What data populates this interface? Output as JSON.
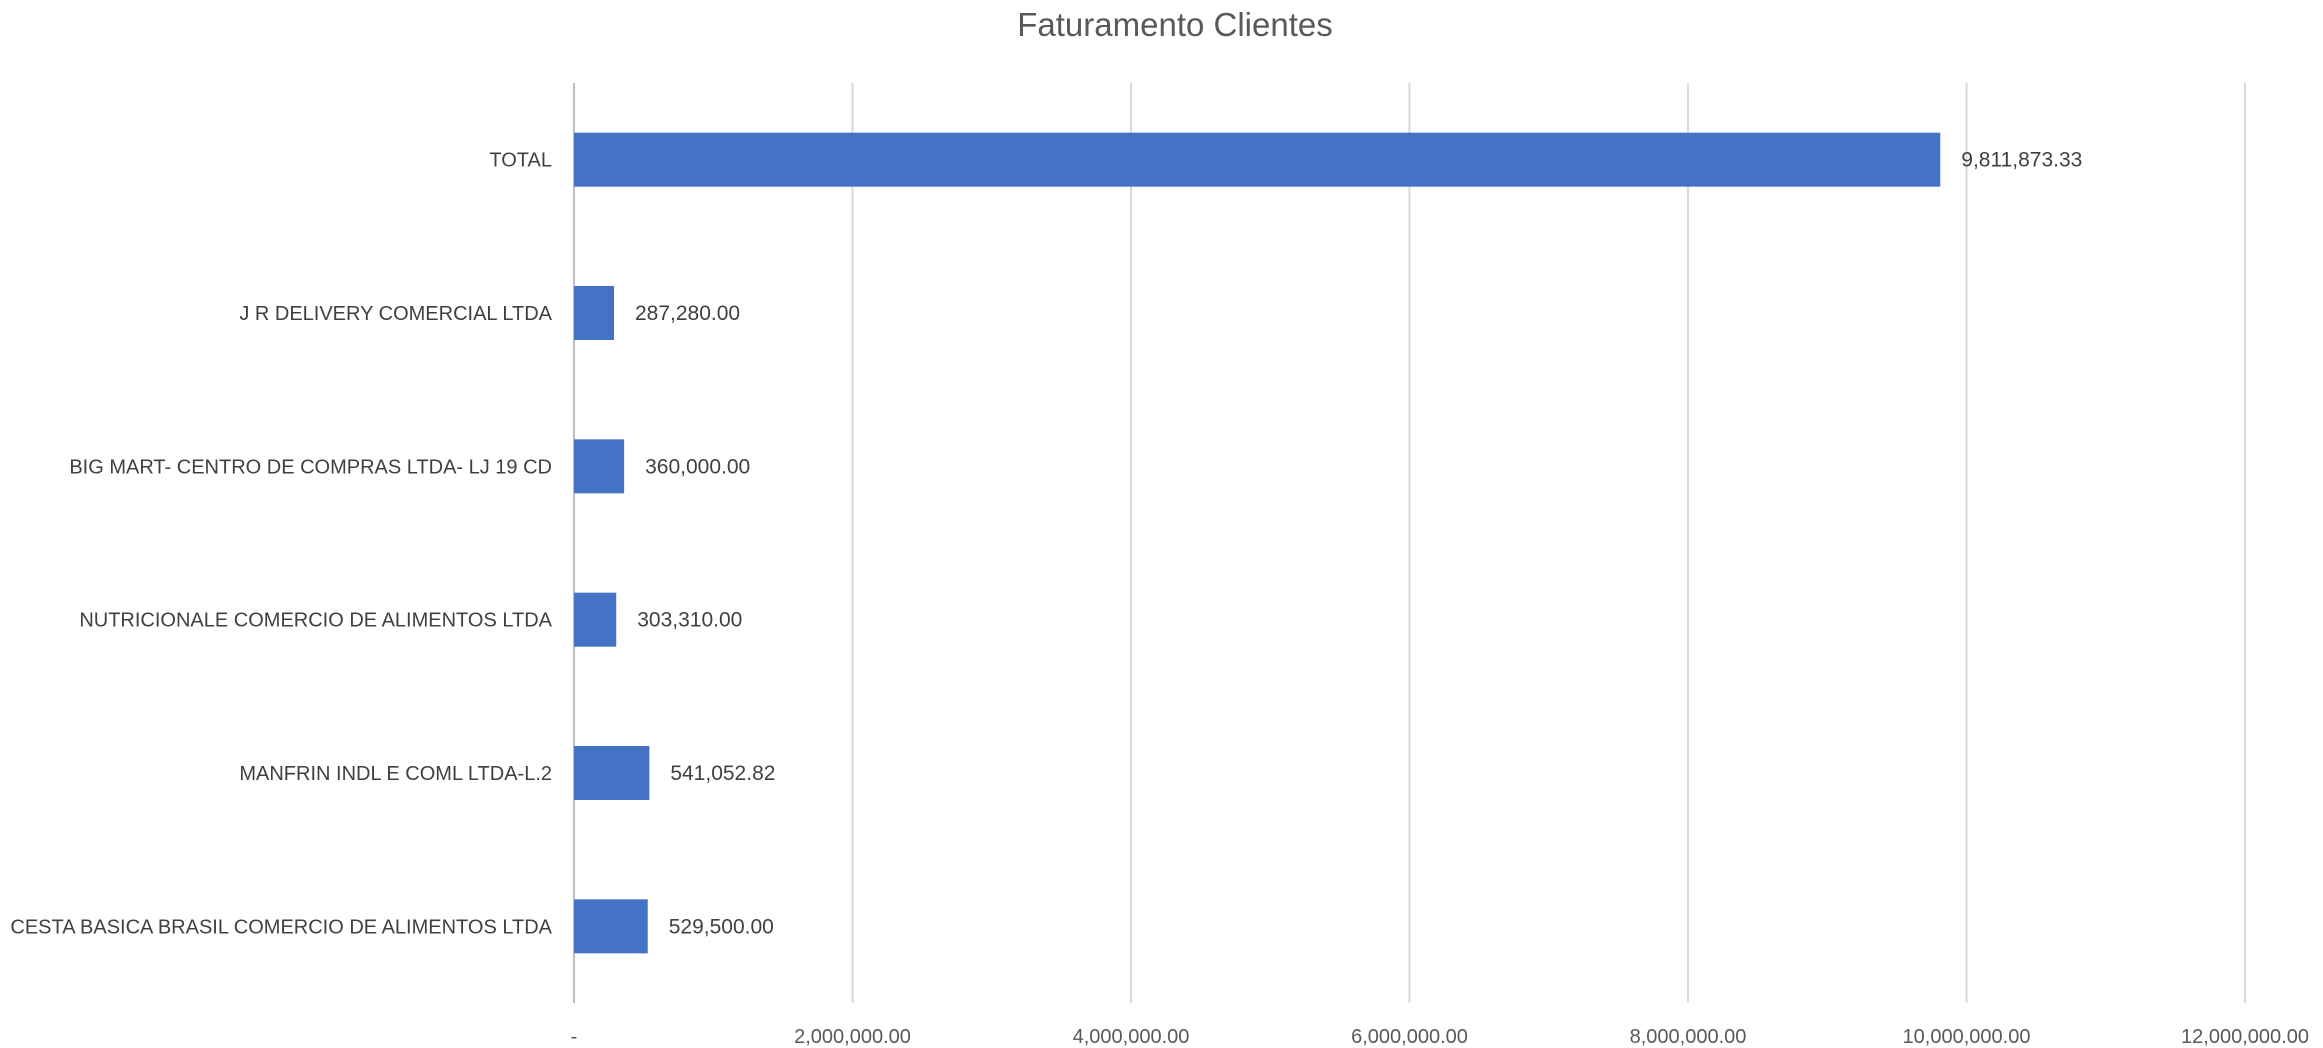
{
  "chart_data": {
    "type": "bar",
    "orientation": "horizontal",
    "title": "Faturamento Clientes",
    "categories": [
      "TOTAL",
      "J R DELIVERY COMERCIAL LTDA",
      "BIG MART- CENTRO DE COMPRAS LTDA- LJ 19 CD",
      "NUTRICIONALE COMERCIO DE ALIMENTOS LTDA",
      "MANFRIN INDL E COML LTDA-L.2",
      "CESTA BASICA BRASIL COMERCIO DE ALIMENTOS LTDA"
    ],
    "values": [
      9811873.33,
      287280.0,
      360000.0,
      303310.0,
      541052.82,
      529500.0
    ],
    "value_labels": [
      "9,811,873.33",
      "287,280.00",
      "360,000.00",
      "303,310.00",
      "541,052.82",
      "529,500.00"
    ],
    "x_ticks": [
      0,
      2000000,
      4000000,
      6000000,
      8000000,
      10000000,
      12000000
    ],
    "x_tick_labels": [
      "-",
      "2,000,000.00",
      "4,000,000.00",
      "6,000,000.00",
      "8,000,000.00",
      "10,000,000.00",
      "12,000,000.00"
    ],
    "xlim": [
      0,
      12000000
    ],
    "xlabel": "",
    "ylabel": "",
    "grid": "vertical",
    "legend": "none",
    "bar_color": "#4472C4",
    "grid_color": "#D9D9D9"
  }
}
